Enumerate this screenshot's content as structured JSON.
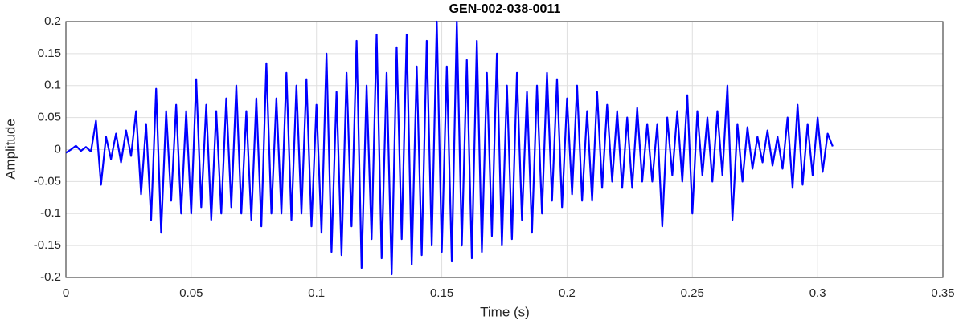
{
  "chart_data": {
    "type": "line",
    "title": "GEN-002-038-0011",
    "x_label": "Time (s)",
    "y_label": "Amplitude",
    "xlim": [
      0,
      0.35
    ],
    "xticks": [
      0,
      0.05,
      0.1,
      0.15,
      0.2,
      0.25,
      0.3,
      0.35
    ],
    "ylim": [
      -0.2,
      0.2
    ],
    "yticks": [
      -0.2,
      -0.15,
      -0.1,
      -0.05,
      0,
      0.05,
      0.1,
      0.15,
      0.2
    ],
    "grid": true,
    "series": [
      {
        "color": "#0000ff",
        "x": [
          0,
          0.002,
          0.004,
          0.006,
          0.008,
          0.01,
          0.012,
          0.014,
          0.016,
          0.018,
          0.02,
          0.022,
          0.024,
          0.026,
          0.028,
          0.03,
          0.032,
          0.034,
          0.036,
          0.038,
          0.04,
          0.042,
          0.044,
          0.046,
          0.048,
          0.05,
          0.052,
          0.054,
          0.056,
          0.058,
          0.06,
          0.062,
          0.064,
          0.066,
          0.068,
          0.07,
          0.072,
          0.074,
          0.076,
          0.078,
          0.08,
          0.082,
          0.084,
          0.086,
          0.088,
          0.09,
          0.092,
          0.094,
          0.096,
          0.098,
          0.1,
          0.102,
          0.104,
          0.106,
          0.108,
          0.11,
          0.112,
          0.114,
          0.116,
          0.118,
          0.12,
          0.122,
          0.124,
          0.126,
          0.128,
          0.13,
          0.132,
          0.134,
          0.136,
          0.138,
          0.14,
          0.142,
          0.144,
          0.146,
          0.148,
          0.15,
          0.152,
          0.154,
          0.156,
          0.158,
          0.16,
          0.162,
          0.164,
          0.166,
          0.168,
          0.17,
          0.172,
          0.174,
          0.176,
          0.178,
          0.18,
          0.182,
          0.184,
          0.186,
          0.188,
          0.19,
          0.192,
          0.194,
          0.196,
          0.198,
          0.2,
          0.202,
          0.204,
          0.206,
          0.208,
          0.21,
          0.212,
          0.214,
          0.216,
          0.218,
          0.22,
          0.222,
          0.224,
          0.226,
          0.228,
          0.23,
          0.232,
          0.234,
          0.236,
          0.238,
          0.24,
          0.242,
          0.244,
          0.246,
          0.248,
          0.25,
          0.252,
          0.254,
          0.256,
          0.258,
          0.26,
          0.262,
          0.264,
          0.266,
          0.268,
          0.27,
          0.272,
          0.274,
          0.276,
          0.278,
          0.28,
          0.282,
          0.284,
          0.286,
          0.288,
          0.29,
          0.292,
          0.294,
          0.296,
          0.298,
          0.3,
          0.302,
          0.304,
          0.306
        ],
        "values": [
          -0.005,
          0.0,
          0.006,
          -0.002,
          0.004,
          -0.003,
          0.045,
          -0.055,
          0.02,
          -0.015,
          0.025,
          -0.02,
          0.03,
          -0.01,
          0.06,
          -0.07,
          0.04,
          -0.11,
          0.095,
          -0.13,
          0.06,
          -0.08,
          0.07,
          -0.1,
          0.06,
          -0.1,
          0.11,
          -0.09,
          0.07,
          -0.11,
          0.06,
          -0.1,
          0.08,
          -0.09,
          0.1,
          -0.1,
          0.06,
          -0.11,
          0.08,
          -0.12,
          0.135,
          -0.1,
          0.08,
          -0.1,
          0.12,
          -0.11,
          0.1,
          -0.1,
          0.11,
          -0.12,
          0.07,
          -0.13,
          0.15,
          -0.16,
          0.09,
          -0.165,
          0.12,
          -0.12,
          0.17,
          -0.185,
          0.1,
          -0.14,
          0.18,
          -0.17,
          0.12,
          -0.195,
          0.16,
          -0.14,
          0.18,
          -0.18,
          0.13,
          -0.165,
          0.17,
          -0.15,
          0.2,
          -0.16,
          0.13,
          -0.175,
          0.2,
          -0.15,
          0.14,
          -0.17,
          0.17,
          -0.16,
          0.12,
          -0.135,
          0.15,
          -0.15,
          0.1,
          -0.14,
          0.12,
          -0.11,
          0.09,
          -0.13,
          0.1,
          -0.1,
          0.12,
          -0.08,
          0.11,
          -0.09,
          0.08,
          -0.07,
          0.1,
          -0.08,
          0.06,
          -0.08,
          0.09,
          -0.06,
          0.07,
          -0.05,
          0.06,
          -0.06,
          0.05,
          -0.06,
          0.065,
          -0.05,
          0.04,
          -0.05,
          0.04,
          -0.12,
          0.05,
          -0.04,
          0.06,
          -0.05,
          0.085,
          -0.1,
          0.06,
          -0.04,
          0.05,
          -0.05,
          0.06,
          -0.04,
          0.1,
          -0.11,
          0.04,
          -0.05,
          0.035,
          -0.03,
          0.02,
          -0.02,
          0.03,
          -0.025,
          0.02,
          -0.03,
          0.05,
          -0.06,
          0.07,
          -0.055,
          0.04,
          -0.04,
          0.05,
          -0.035,
          0.025,
          0.005
        ]
      }
    ]
  }
}
